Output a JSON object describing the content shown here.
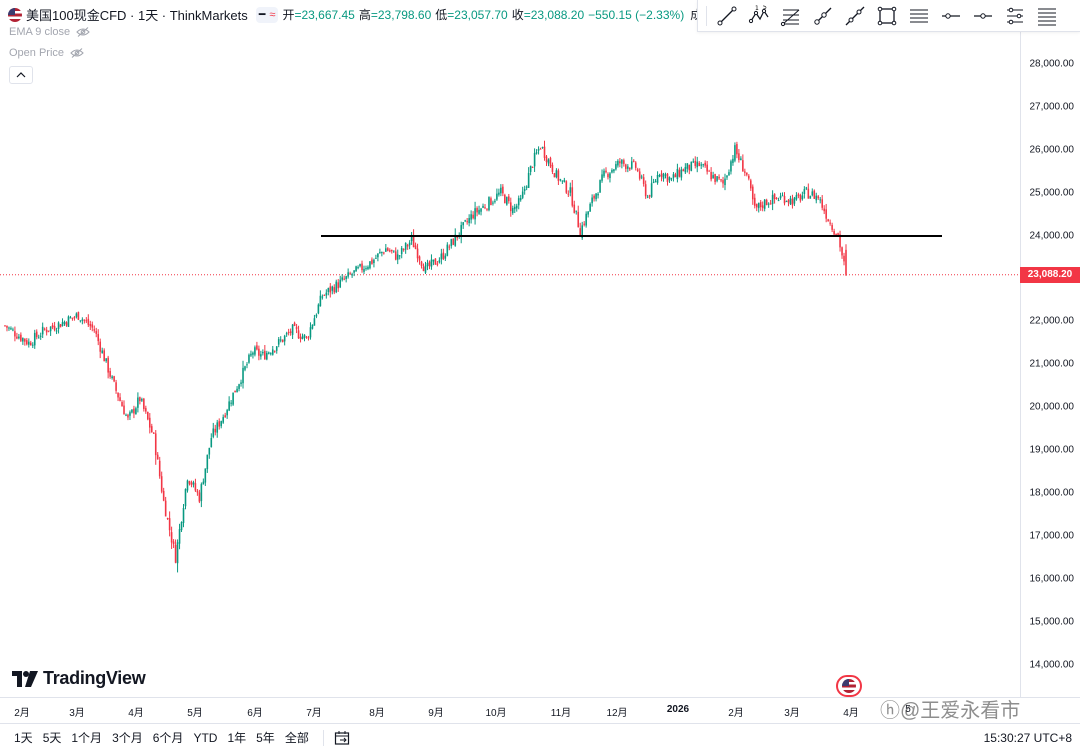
{
  "legend": {
    "symbol": "美国100现金CFD · 1天 · ThinkMarkets",
    "open_label": "开",
    "open": "=23,667.45",
    "high_label": "高",
    "high": "=23,798.60",
    "low_label": "低",
    "low": "=23,057.70",
    "close_label": "收",
    "close": "=23,088.20",
    "change": "−550.15 (−2.33%)",
    "volume_label": "成交"
  },
  "studies": [
    "EMA 9 close",
    "Open Price"
  ],
  "toolbar": {
    "tools": [
      "trend-line-icon",
      "pattern-icon",
      "fib-retracement-icon",
      "ray-icon",
      "extended-line-icon",
      "rectangle-icon",
      "parallel-channel-icon",
      "horizontal-ray-icon",
      "horizontal-line-icon",
      "path-icon",
      "fib-channel-icon"
    ]
  },
  "last_price_tag": "23,088.20",
  "time_ranges": [
    "1天",
    "5天",
    "1个月",
    "3个月",
    "6个月",
    "YTD",
    "1年",
    "5年",
    "全部"
  ],
  "clock": "15:30:27 UTC+8",
  "logo_text": "TradingView",
  "watermark": "ⓗ@王爱永看市",
  "colors": {
    "up": "#089981",
    "down": "#f23645",
    "support": "#000000",
    "last_price": "#f23645"
  },
  "chart_data": {
    "type": "candlestick",
    "title": "",
    "ylim": [
      13600,
      28700
    ],
    "y_ticks": [
      14000,
      15000,
      16000,
      17000,
      18000,
      19000,
      20000,
      21000,
      22000,
      23000,
      24000,
      25000,
      26000,
      27000,
      28000
    ],
    "y_tick_labels": [
      "14,000.00",
      "15,000.00",
      "16,000.00",
      "17,000.00",
      "18,000.00",
      "19,000.00",
      "20,000.00",
      "21,000.00",
      "22,000.00",
      "23,000.00",
      "24,000.00",
      "25,000.00",
      "26,000.00",
      "27,000.00",
      "28,000.00"
    ],
    "x_labels": [
      "2月",
      "3月",
      "4月",
      "5月",
      "6月",
      "7月",
      "8月",
      "9月",
      "10月",
      "11月",
      "12月",
      "2026",
      "2月",
      "3月",
      "4月",
      "5"
    ],
    "support_line": 23990,
    "last_price": 23088.2,
    "trajectory_anchors": [
      [
        0,
        21900
      ],
      [
        12,
        21500
      ],
      [
        20,
        21800
      ],
      [
        28,
        21950
      ],
      [
        37,
        22150
      ],
      [
        45,
        21800
      ],
      [
        55,
        20500
      ],
      [
        62,
        19700
      ],
      [
        68,
        20200
      ],
      [
        75,
        19300
      ],
      [
        80,
        17800
      ],
      [
        86,
        16500
      ],
      [
        92,
        18400
      ],
      [
        98,
        17900
      ],
      [
        104,
        19300
      ],
      [
        110,
        19800
      ],
      [
        118,
        20600
      ],
      [
        125,
        21300
      ],
      [
        130,
        21200
      ],
      [
        138,
        21500
      ],
      [
        145,
        21800
      ],
      [
        152,
        21600
      ],
      [
        160,
        22600
      ],
      [
        166,
        22800
      ],
      [
        175,
        23100
      ],
      [
        185,
        23400
      ],
      [
        192,
        23700
      ],
      [
        198,
        23500
      ],
      [
        205,
        23900
      ],
      [
        212,
        23200
      ],
      [
        220,
        23500
      ],
      [
        228,
        24000
      ],
      [
        236,
        24500
      ],
      [
        242,
        24700
      ],
      [
        250,
        25000
      ],
      [
        256,
        24600
      ],
      [
        260,
        24800
      ],
      [
        266,
        25700
      ],
      [
        270,
        26100
      ],
      [
        278,
        25400
      ],
      [
        285,
        25000
      ],
      [
        290,
        24100
      ],
      [
        296,
        24800
      ],
      [
        302,
        25400
      ],
      [
        310,
        25700
      ],
      [
        318,
        25600
      ],
      [
        324,
        24900
      ],
      [
        330,
        25500
      ],
      [
        336,
        25300
      ],
      [
        342,
        25550
      ],
      [
        350,
        25650
      ],
      [
        356,
        25400
      ],
      [
        362,
        25200
      ],
      [
        368,
        26000
      ],
      [
        374,
        25400
      ],
      [
        378,
        24600
      ],
      [
        384,
        24800
      ],
      [
        392,
        24900
      ],
      [
        398,
        24800
      ],
      [
        404,
        25000
      ],
      [
        410,
        24900
      ],
      [
        416,
        24300
      ],
      [
        420,
        24000
      ],
      [
        424,
        23088
      ]
    ]
  }
}
